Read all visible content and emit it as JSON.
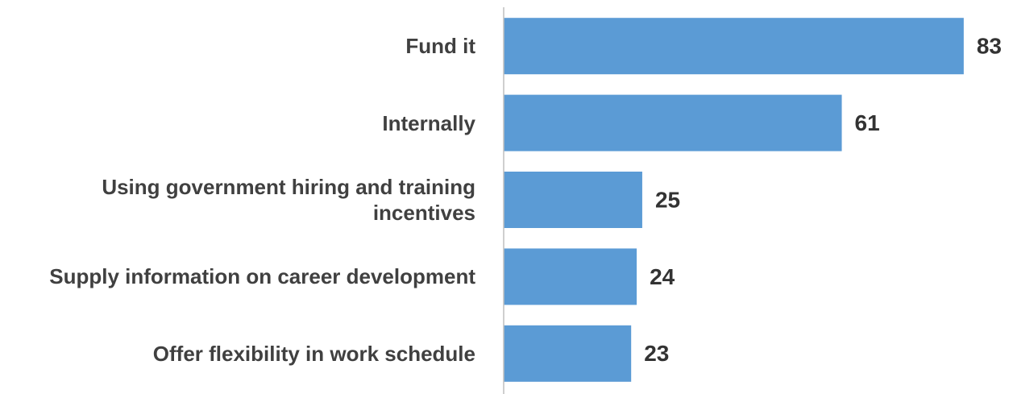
{
  "chart_data": {
    "type": "barh",
    "categories": [
      "Fund it",
      "Internally",
      "Using government hiring and training incentives",
      "Supply information on career development",
      "Offer flexibility in work schedule"
    ],
    "values": [
      83,
      61,
      25,
      24,
      23
    ],
    "color": "#5b9bd5",
    "xlim": [
      0,
      90
    ]
  }
}
